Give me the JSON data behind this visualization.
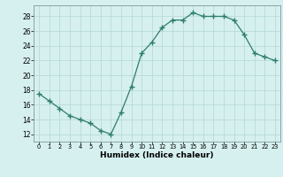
{
  "x": [
    0,
    1,
    2,
    3,
    4,
    5,
    6,
    7,
    8,
    9,
    10,
    11,
    12,
    13,
    14,
    15,
    16,
    17,
    18,
    19,
    20,
    21,
    22,
    23
  ],
  "y": [
    17.5,
    16.5,
    15.5,
    14.5,
    14.0,
    13.5,
    12.5,
    12.0,
    15.0,
    18.5,
    23.0,
    24.5,
    26.5,
    27.5,
    27.5,
    28.5,
    28.0,
    28.0,
    28.0,
    27.5,
    25.5,
    23.0,
    22.5,
    22.0
  ],
  "xlim": [
    -0.5,
    23.5
  ],
  "ylim": [
    11,
    29.5
  ],
  "yticks": [
    12,
    14,
    16,
    18,
    20,
    22,
    24,
    26,
    28
  ],
  "xtick_labels": [
    "0",
    "1",
    "2",
    "3",
    "4",
    "5",
    "6",
    "7",
    "8",
    "9",
    "10",
    "11",
    "12",
    "13",
    "14",
    "15",
    "16",
    "17",
    "18",
    "19",
    "20",
    "21",
    "22",
    "23"
  ],
  "xlabel": "Humidex (Indice chaleur)",
  "line_color": "#2e7d6e",
  "marker": "+",
  "bg_color": "#d6f0ef",
  "grid_color": "#b8dbd8",
  "spine_color": "#7a9a98"
}
